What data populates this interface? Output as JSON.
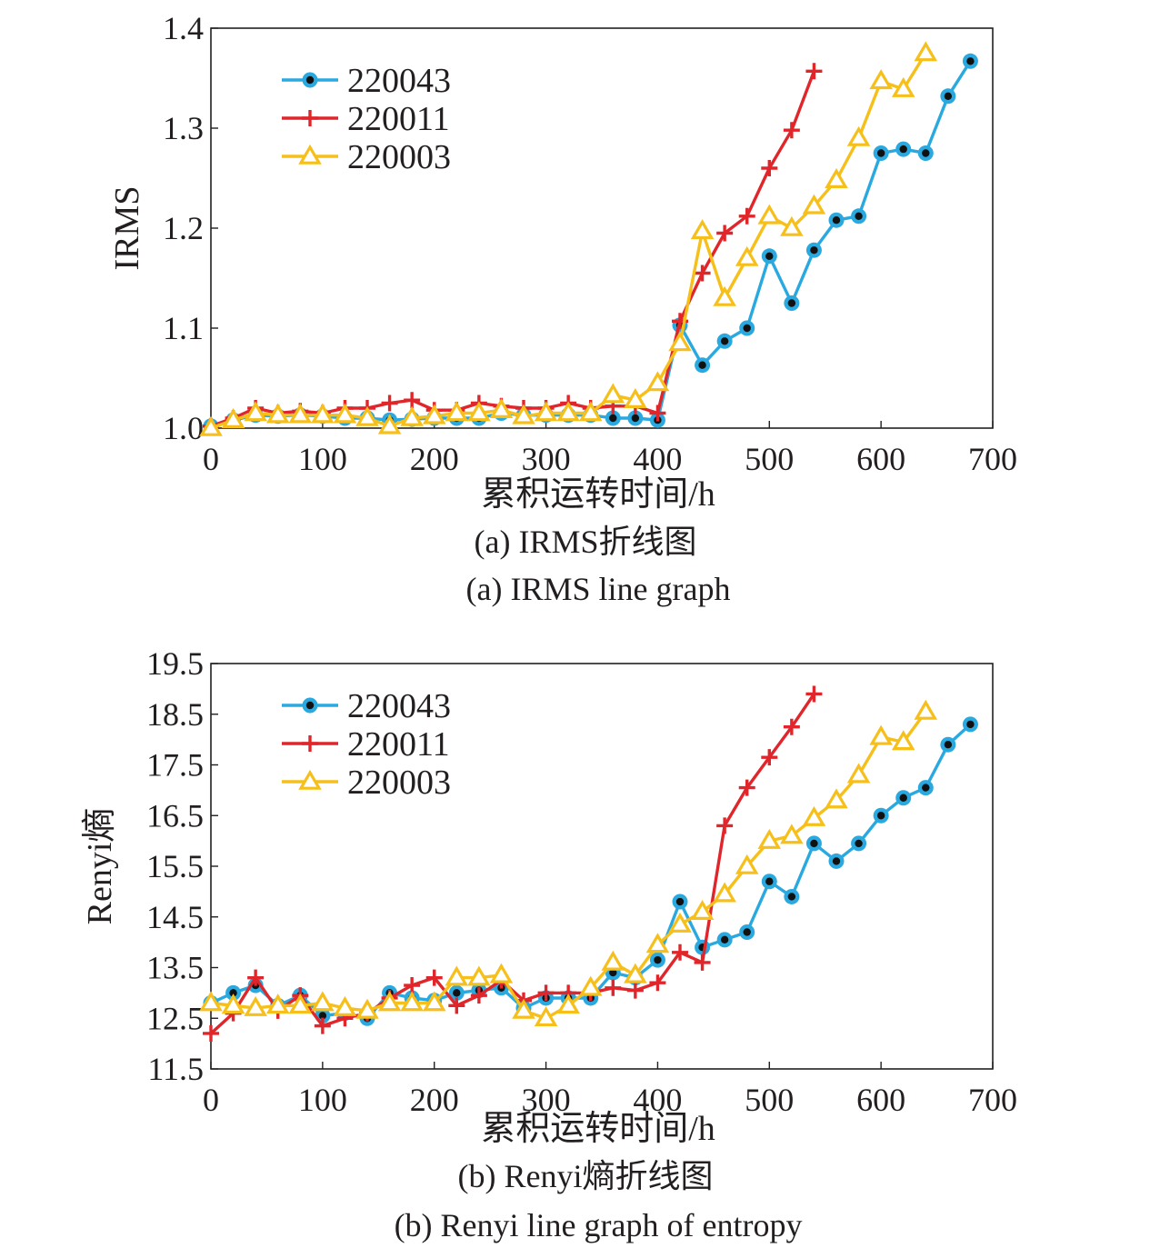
{
  "chart_data": [
    {
      "type": "line",
      "ylabel": "IRMS",
      "xlabel": "累积运转时间/h",
      "caption_cn": "(a) IRMS折线图",
      "caption_en": "(a) IRMS line graph",
      "xlim": [
        0,
        700
      ],
      "ylim": [
        1.0,
        1.4
      ],
      "xticks": [
        "0",
        "100",
        "200",
        "300",
        "400",
        "500",
        "600",
        "700"
      ],
      "yticks": [
        "1.0",
        "1.1",
        "1.2",
        "1.3",
        "1.4"
      ],
      "grid": false,
      "legend_position": "top-left",
      "series": [
        {
          "name": "220043",
          "color": "#29a9df",
          "marker": "circle",
          "x": [
            0,
            20,
            40,
            60,
            80,
            100,
            120,
            140,
            160,
            180,
            200,
            220,
            240,
            260,
            280,
            300,
            320,
            340,
            360,
            380,
            400,
            420,
            440,
            460,
            480,
            500,
            520,
            540,
            560,
            580,
            600,
            620,
            640,
            660,
            680
          ],
          "y": [
            1.002,
            1.008,
            1.013,
            1.012,
            1.013,
            1.012,
            1.01,
            1.01,
            1.008,
            1.009,
            1.01,
            1.01,
            1.01,
            1.015,
            1.013,
            1.013,
            1.013,
            1.013,
            1.01,
            1.01,
            1.008,
            1.103,
            1.063,
            1.087,
            1.1,
            1.172,
            1.125,
            1.178,
            1.208,
            1.212,
            1.275,
            1.279,
            1.275,
            1.332,
            1.367
          ]
        },
        {
          "name": "220011",
          "color": "#e0262a",
          "marker": "plus",
          "x": [
            0,
            20,
            40,
            60,
            80,
            100,
            120,
            140,
            160,
            180,
            200,
            220,
            240,
            260,
            280,
            300,
            320,
            340,
            360,
            380,
            400,
            420,
            440,
            460,
            480,
            500,
            520,
            540
          ],
          "y": [
            1.002,
            1.01,
            1.02,
            1.015,
            1.017,
            1.015,
            1.02,
            1.02,
            1.025,
            1.028,
            1.018,
            1.018,
            1.025,
            1.022,
            1.02,
            1.02,
            1.025,
            1.02,
            1.022,
            1.022,
            1.015,
            1.107,
            1.155,
            1.195,
            1.212,
            1.26,
            1.298,
            1.357
          ]
        },
        {
          "name": "220003",
          "color": "#f6bf1a",
          "marker": "triangle",
          "x": [
            0,
            20,
            40,
            60,
            80,
            100,
            120,
            140,
            160,
            180,
            200,
            220,
            240,
            260,
            280,
            300,
            320,
            340,
            360,
            380,
            400,
            420,
            440,
            460,
            480,
            500,
            520,
            540,
            560,
            580,
            600,
            620,
            640
          ],
          "y": [
            1.0,
            1.008,
            1.015,
            1.013,
            1.013,
            1.013,
            1.013,
            1.01,
            1.002,
            1.01,
            1.012,
            1.015,
            1.015,
            1.018,
            1.012,
            1.015,
            1.015,
            1.015,
            1.033,
            1.028,
            1.045,
            1.085,
            1.197,
            1.13,
            1.17,
            1.212,
            1.2,
            1.222,
            1.248,
            1.29,
            1.347,
            1.339,
            1.375
          ]
        }
      ]
    },
    {
      "type": "line",
      "ylabel": "Renyi熵",
      "xlabel": "累积运转时间/h",
      "caption_cn": "(b) Renyi熵折线图",
      "caption_en": "(b) Renyi line graph of entropy",
      "xlim": [
        0,
        700
      ],
      "ylim": [
        11.5,
        19.5
      ],
      "xticks": [
        "0",
        "100",
        "200",
        "300",
        "400",
        "500",
        "600",
        "700"
      ],
      "yticks": [
        "11.5",
        "12.5",
        "13.5",
        "14.5",
        "15.5",
        "16.5",
        "17.5",
        "18.5",
        "19.5"
      ],
      "grid": false,
      "legend_position": "top-left",
      "series": [
        {
          "name": "220043",
          "color": "#29a9df",
          "marker": "circle",
          "x": [
            0,
            20,
            40,
            60,
            80,
            100,
            120,
            140,
            160,
            180,
            200,
            220,
            240,
            260,
            280,
            300,
            320,
            340,
            360,
            380,
            400,
            420,
            440,
            460,
            480,
            500,
            520,
            540,
            560,
            580,
            600,
            620,
            640,
            660,
            680
          ],
          "y": [
            12.8,
            13.0,
            13.15,
            12.75,
            12.95,
            12.55,
            12.6,
            12.5,
            13.0,
            12.9,
            12.85,
            13.0,
            13.05,
            13.1,
            12.7,
            12.9,
            12.9,
            12.9,
            13.4,
            13.3,
            13.65,
            14.8,
            13.9,
            14.05,
            14.2,
            15.2,
            14.9,
            15.95,
            15.6,
            15.95,
            16.5,
            16.85,
            17.05,
            17.9,
            18.3
          ]
        },
        {
          "name": "220011",
          "color": "#e0262a",
          "marker": "plus",
          "x": [
            0,
            20,
            40,
            60,
            80,
            100,
            120,
            140,
            160,
            180,
            200,
            220,
            240,
            260,
            280,
            300,
            320,
            340,
            360,
            380,
            400,
            420,
            440,
            460,
            480,
            500,
            520,
            540
          ],
          "y": [
            12.2,
            12.6,
            13.3,
            12.65,
            12.95,
            12.35,
            12.5,
            12.6,
            12.9,
            13.15,
            13.3,
            12.75,
            12.95,
            13.25,
            12.85,
            13.0,
            13.0,
            13.0,
            13.1,
            13.05,
            13.2,
            13.8,
            13.6,
            16.3,
            17.05,
            17.65,
            18.25,
            18.9
          ]
        },
        {
          "name": "220003",
          "color": "#f6bf1a",
          "marker": "triangle",
          "x": [
            0,
            20,
            40,
            60,
            80,
            100,
            120,
            140,
            160,
            180,
            200,
            220,
            240,
            260,
            280,
            300,
            320,
            340,
            360,
            380,
            400,
            420,
            440,
            460,
            480,
            500,
            520,
            540,
            560,
            580,
            600,
            620,
            640
          ],
          "y": [
            12.8,
            12.75,
            12.7,
            12.75,
            12.75,
            12.8,
            12.7,
            12.65,
            12.8,
            12.8,
            12.8,
            13.3,
            13.3,
            13.35,
            12.65,
            12.5,
            12.75,
            13.1,
            13.6,
            13.35,
            13.95,
            14.35,
            14.6,
            14.95,
            15.5,
            16.0,
            16.1,
            16.45,
            16.8,
            17.3,
            18.05,
            17.95,
            18.55
          ]
        }
      ]
    }
  ]
}
